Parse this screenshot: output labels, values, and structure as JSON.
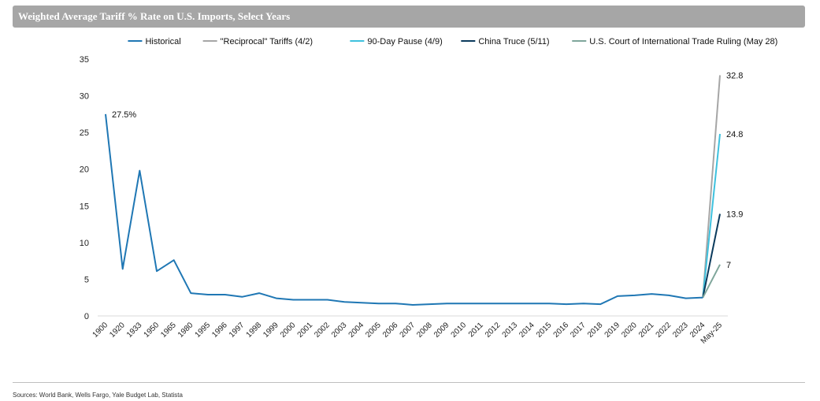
{
  "header": {
    "title": "Weighted Average Tariff % Rate on U.S. Imports, Select Years"
  },
  "footer": {
    "source": "Sources: World Bank, Wells Fargo, Yale Budget Lab, Statista"
  },
  "chart_data": {
    "type": "line",
    "title": "Weighted Average Tariff % Rate on U.S. Imports, Select Years",
    "xlabel": "",
    "ylabel": "",
    "ylim": [
      0,
      35
    ],
    "yticks": [
      0,
      5,
      10,
      15,
      20,
      25,
      30,
      35
    ],
    "grid": false,
    "legend_position": "top",
    "categories": [
      "1900",
      "1920",
      "1933",
      "1950",
      "1965",
      "1980",
      "1995",
      "1996",
      "1997",
      "1998",
      "1999",
      "2000",
      "2001",
      "2002",
      "2003",
      "2004",
      "2005",
      "2006",
      "2007",
      "2008",
      "2009",
      "2010",
      "2011",
      "2012",
      "2013",
      "2014",
      "2015",
      "2016",
      "2017",
      "2018",
      "2019",
      "2020",
      "2021",
      "2022",
      "2023",
      "2024",
      "May-25"
    ],
    "series": [
      {
        "name": "Historical",
        "color": "#1f77b4",
        "values": [
          27.5,
          6.4,
          19.8,
          6.1,
          7.6,
          3.1,
          2.9,
          2.9,
          2.6,
          3.1,
          2.4,
          2.2,
          2.2,
          2.2,
          1.9,
          1.8,
          1.7,
          1.7,
          1.5,
          1.6,
          1.7,
          1.7,
          1.7,
          1.7,
          1.7,
          1.7,
          1.7,
          1.6,
          1.7,
          1.6,
          2.7,
          2.8,
          3.0,
          2.8,
          2.4,
          2.5,
          null
        ]
      },
      {
        "name": "\"Reciprocal\" Tariffs (4/2)",
        "color": "#a6a6a6",
        "values": [
          null,
          null,
          null,
          null,
          null,
          null,
          null,
          null,
          null,
          null,
          null,
          null,
          null,
          null,
          null,
          null,
          null,
          null,
          null,
          null,
          null,
          null,
          null,
          null,
          null,
          null,
          null,
          null,
          null,
          null,
          null,
          null,
          null,
          null,
          null,
          2.5,
          32.8
        ]
      },
      {
        "name": "90-Day Pause (4/9)",
        "color": "#3ec1de",
        "values": [
          null,
          null,
          null,
          null,
          null,
          null,
          null,
          null,
          null,
          null,
          null,
          null,
          null,
          null,
          null,
          null,
          null,
          null,
          null,
          null,
          null,
          null,
          null,
          null,
          null,
          null,
          null,
          null,
          null,
          null,
          null,
          null,
          null,
          null,
          null,
          2.5,
          24.8
        ]
      },
      {
        "name": "China Truce (5/11)",
        "color": "#0b3a5c",
        "values": [
          null,
          null,
          null,
          null,
          null,
          null,
          null,
          null,
          null,
          null,
          null,
          null,
          null,
          null,
          null,
          null,
          null,
          null,
          null,
          null,
          null,
          null,
          null,
          null,
          null,
          null,
          null,
          null,
          null,
          null,
          null,
          null,
          null,
          null,
          null,
          2.5,
          13.9
        ]
      },
      {
        "name": "U.S. Court of International Trade Ruling (May 28)",
        "color": "#7fa69b",
        "values": [
          null,
          null,
          null,
          null,
          null,
          null,
          null,
          null,
          null,
          null,
          null,
          null,
          null,
          null,
          null,
          null,
          null,
          null,
          null,
          null,
          null,
          null,
          null,
          null,
          null,
          null,
          null,
          null,
          null,
          null,
          null,
          null,
          null,
          null,
          null,
          2.5,
          7
        ]
      }
    ],
    "annotations": [
      {
        "text": "27.5%",
        "series": 0,
        "index": 0
      },
      {
        "text": "32.8",
        "series": 1,
        "index": 36
      },
      {
        "text": "24.8",
        "series": 2,
        "index": 36
      },
      {
        "text": "13.9",
        "series": 3,
        "index": 36
      },
      {
        "text": "7",
        "series": 4,
        "index": 36
      }
    ]
  }
}
